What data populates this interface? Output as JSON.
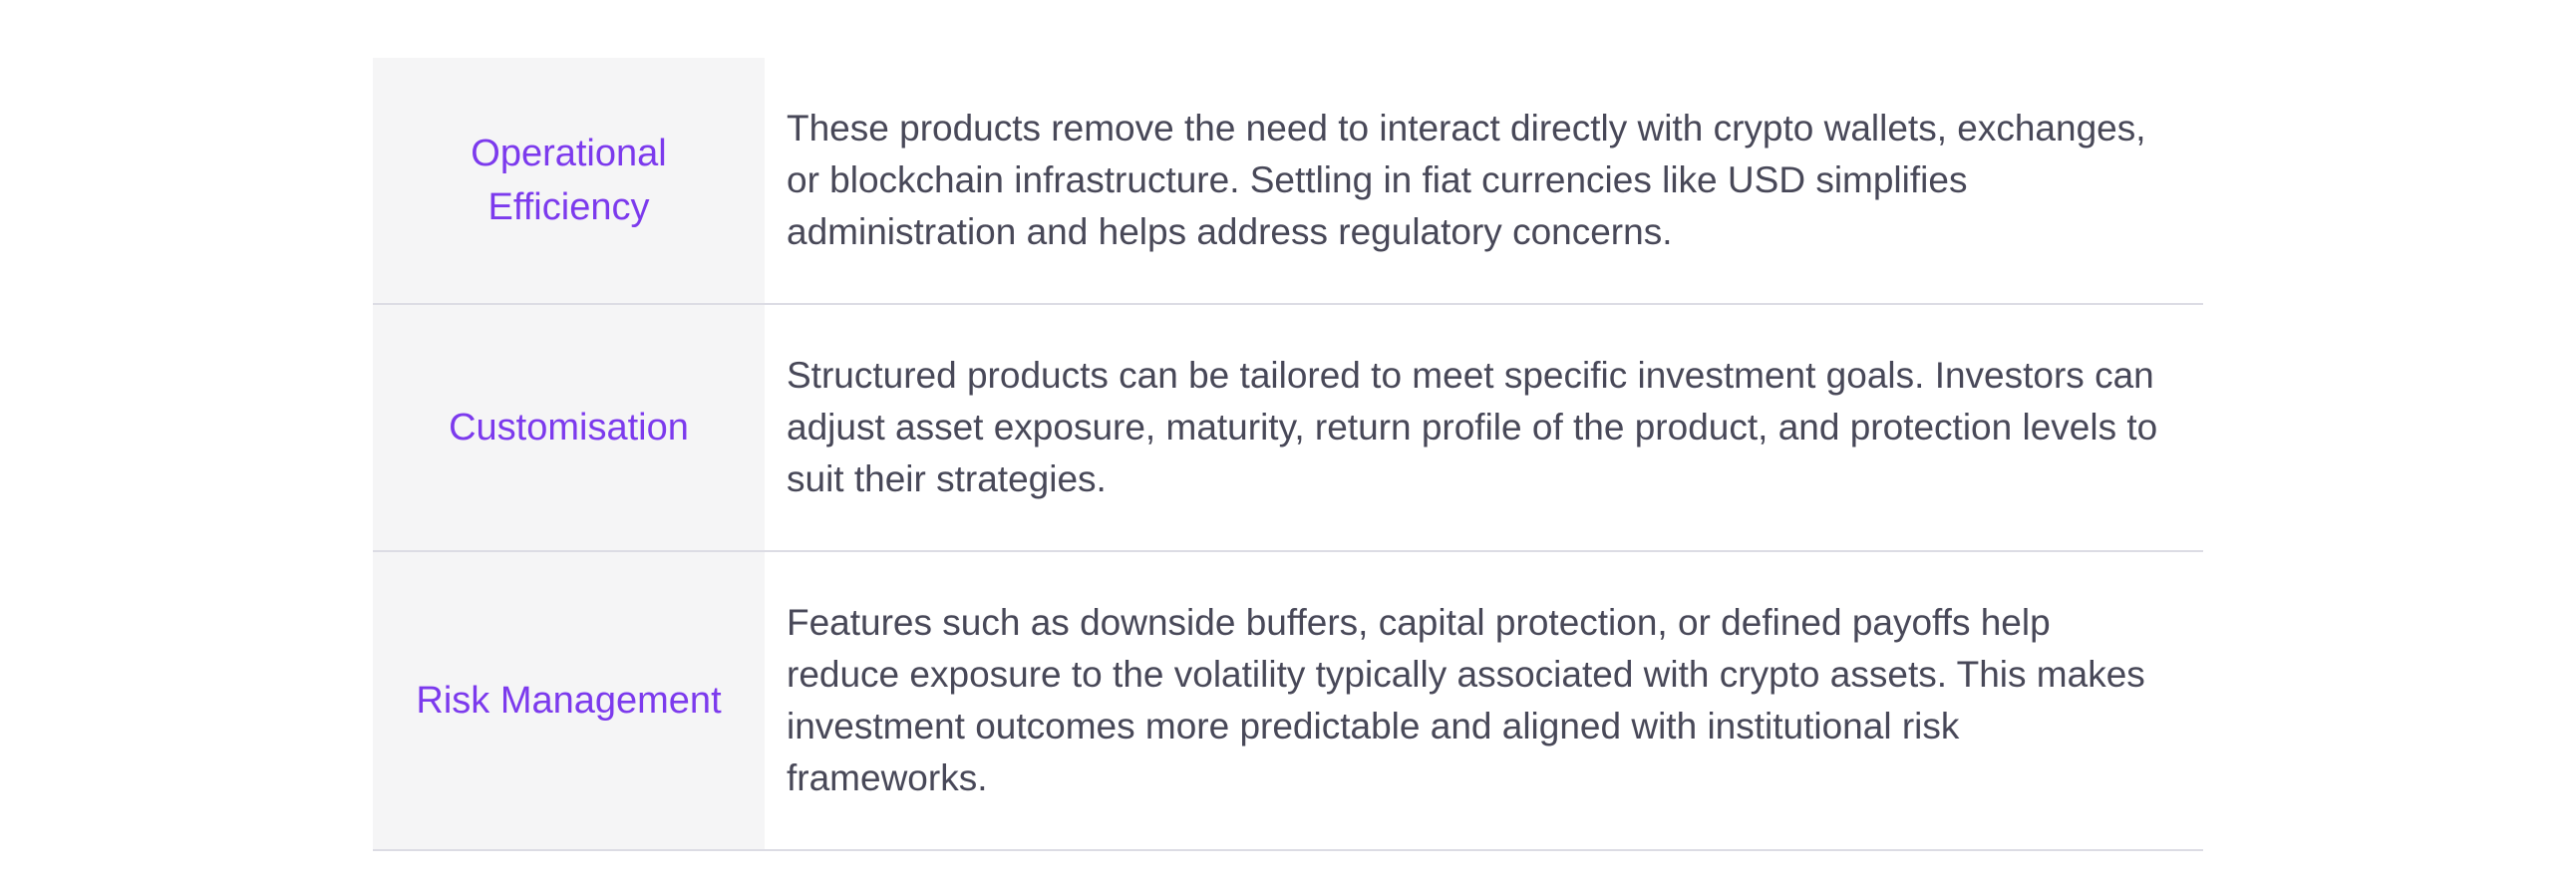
{
  "table": {
    "rows": [
      {
        "label": "Operational Efficiency",
        "description": "These products remove the need to interact directly with crypto wallets, exchanges, or blockchain infrastructure. Settling in fiat currencies like USD simplifies administration and helps address regulatory concerns."
      },
      {
        "label": "Customisation",
        "description": "Structured products can be tailored to meet specific investment goals. Investors can adjust asset exposure, maturity, return profile of the product, and protection levels to suit their strategies."
      },
      {
        "label": "Risk Management",
        "description": "Features such as downside buffers, capital protection, or defined payoffs help reduce exposure to the volatility typically associated with crypto assets. This makes investment outcomes more predictable and aligned with institutional risk frameworks."
      }
    ]
  },
  "colors": {
    "label_color": "#7C3AED",
    "body_color": "#484858",
    "label_bg": "#F5F5F6",
    "divider": "#DCDCE4",
    "page_bg": "#FFFFFF"
  }
}
